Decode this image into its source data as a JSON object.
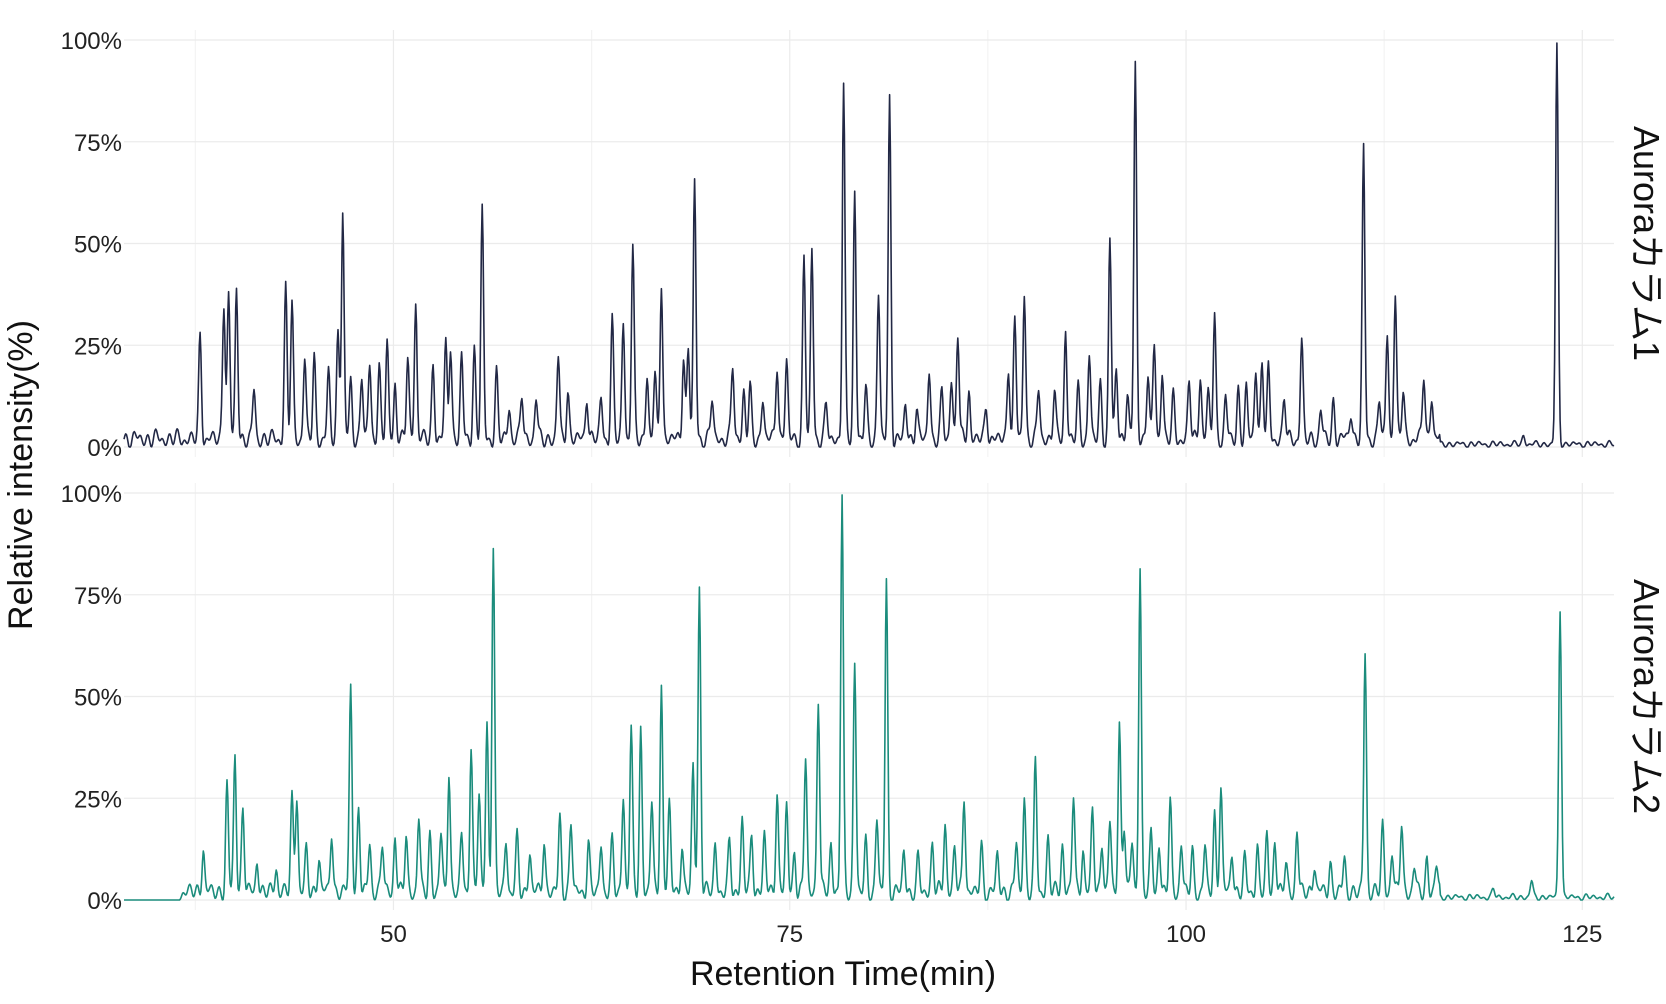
{
  "chart_data": {
    "type": "line",
    "xlabel": "Retention Time(min)",
    "ylabel": "Relative intensity(%)",
    "xlim": [
      33,
      127
    ],
    "ylim": [
      0,
      100
    ],
    "x_ticks": [
      50,
      75,
      100,
      125
    ],
    "x_tick_labels": [
      "50",
      "75",
      "100",
      "125"
    ],
    "y_ticks": [
      0,
      25,
      50,
      75,
      100
    ],
    "y_tick_labels": [
      "0%",
      "25%",
      "50%",
      "75%",
      "100%"
    ],
    "grid": true,
    "legend": "none",
    "baseline": 2,
    "series": [
      {
        "name": "Auroraカラム1",
        "color": "#222845",
        "peaks": [
          [
            37.8,
            25
          ],
          [
            39.3,
            34
          ],
          [
            39.6,
            35
          ],
          [
            40.1,
            37
          ],
          [
            41.2,
            12
          ],
          [
            43.2,
            37
          ],
          [
            43.6,
            33
          ],
          [
            44.4,
            20
          ],
          [
            45.0,
            20
          ],
          [
            45.9,
            16
          ],
          [
            46.5,
            26
          ],
          [
            46.8,
            56
          ],
          [
            47.3,
            14
          ],
          [
            48.0,
            16
          ],
          [
            48.5,
            18
          ],
          [
            49.1,
            18
          ],
          [
            49.6,
            23
          ],
          [
            50.1,
            14
          ],
          [
            50.9,
            20
          ],
          [
            51.4,
            34
          ],
          [
            52.5,
            18
          ],
          [
            53.3,
            23
          ],
          [
            53.6,
            23
          ],
          [
            54.3,
            20
          ],
          [
            55.1,
            22
          ],
          [
            55.6,
            56
          ],
          [
            56.5,
            16
          ],
          [
            57.3,
            8
          ],
          [
            58.1,
            11
          ],
          [
            59.0,
            10
          ],
          [
            60.4,
            20
          ],
          [
            61.0,
            12
          ],
          [
            62.2,
            11
          ],
          [
            63.1,
            10
          ],
          [
            63.8,
            29
          ],
          [
            64.5,
            29
          ],
          [
            65.1,
            47
          ],
          [
            66.0,
            16
          ],
          [
            66.5,
            15
          ],
          [
            66.9,
            39
          ],
          [
            68.3,
            21
          ],
          [
            68.6,
            22
          ],
          [
            69.0,
            63
          ],
          [
            70.1,
            10
          ],
          [
            71.4,
            18
          ],
          [
            72.1,
            12
          ],
          [
            72.5,
            12
          ],
          [
            73.3,
            10
          ],
          [
            74.2,
            19
          ],
          [
            74.8,
            19
          ],
          [
            75.9,
            44
          ],
          [
            76.4,
            47
          ],
          [
            77.3,
            8
          ],
          [
            78.4,
            87
          ],
          [
            79.1,
            61
          ],
          [
            79.8,
            12
          ],
          [
            80.6,
            36
          ],
          [
            81.3,
            83
          ],
          [
            82.3,
            8
          ],
          [
            83.0,
            8
          ],
          [
            83.8,
            17
          ],
          [
            84.6,
            11
          ],
          [
            85.2,
            15
          ],
          [
            85.6,
            26
          ],
          [
            86.3,
            12
          ],
          [
            87.4,
            8
          ],
          [
            88.8,
            18
          ],
          [
            89.2,
            29
          ],
          [
            89.8,
            36
          ],
          [
            90.7,
            12
          ],
          [
            91.7,
            12
          ],
          [
            92.4,
            27
          ],
          [
            93.2,
            12
          ],
          [
            93.9,
            21
          ],
          [
            94.6,
            13
          ],
          [
            95.2,
            49
          ],
          [
            95.6,
            17
          ],
          [
            96.3,
            12
          ],
          [
            96.8,
            92
          ],
          [
            97.6,
            17
          ],
          [
            98.0,
            23
          ],
          [
            98.5,
            17
          ],
          [
            99.2,
            10
          ],
          [
            100.2,
            14
          ],
          [
            100.9,
            16
          ],
          [
            101.4,
            11
          ],
          [
            101.8,
            31
          ],
          [
            102.5,
            10
          ],
          [
            103.3,
            12
          ],
          [
            103.8,
            12
          ],
          [
            104.4,
            18
          ],
          [
            104.8,
            19
          ],
          [
            105.2,
            17
          ],
          [
            106.2,
            10
          ],
          [
            107.3,
            24
          ],
          [
            108.5,
            7
          ],
          [
            109.3,
            9
          ],
          [
            110.4,
            7
          ],
          [
            111.2,
            71
          ],
          [
            112.2,
            10
          ],
          [
            112.7,
            26
          ],
          [
            113.2,
            36
          ],
          [
            113.7,
            12
          ],
          [
            115.0,
            16
          ],
          [
            115.5,
            11
          ],
          [
            121.3,
            2
          ],
          [
            123.4,
            98
          ]
        ]
      },
      {
        "name": "Auroraカラム2",
        "color": "#1b8c7c",
        "peaks": [
          [
            38.0,
            11
          ],
          [
            39.5,
            26
          ],
          [
            40.0,
            34
          ],
          [
            40.5,
            21
          ],
          [
            41.4,
            8
          ],
          [
            42.6,
            6
          ],
          [
            43.6,
            23
          ],
          [
            43.9,
            24
          ],
          [
            44.5,
            10
          ],
          [
            45.3,
            9
          ],
          [
            46.1,
            15
          ],
          [
            47.3,
            51
          ],
          [
            47.8,
            20
          ],
          [
            48.5,
            12
          ],
          [
            49.3,
            12
          ],
          [
            50.1,
            14
          ],
          [
            50.8,
            14
          ],
          [
            51.6,
            18
          ],
          [
            52.3,
            14
          ],
          [
            53.0,
            14
          ],
          [
            53.5,
            30
          ],
          [
            54.3,
            14
          ],
          [
            54.9,
            36
          ],
          [
            55.4,
            24
          ],
          [
            55.9,
            42
          ],
          [
            56.3,
            84
          ],
          [
            57.1,
            13
          ],
          [
            57.8,
            13
          ],
          [
            58.6,
            10
          ],
          [
            59.5,
            13
          ],
          [
            60.5,
            18
          ],
          [
            61.2,
            17
          ],
          [
            62.3,
            12
          ],
          [
            63.1,
            12
          ],
          [
            63.8,
            12
          ],
          [
            64.5,
            24
          ],
          [
            65.0,
            40
          ],
          [
            65.6,
            40
          ],
          [
            66.3,
            22
          ],
          [
            66.9,
            51
          ],
          [
            67.4,
            22
          ],
          [
            68.2,
            12
          ],
          [
            68.9,
            31
          ],
          [
            69.3,
            75
          ],
          [
            70.3,
            12
          ],
          [
            71.2,
            12
          ],
          [
            72.0,
            18
          ],
          [
            72.6,
            14
          ],
          [
            73.4,
            14
          ],
          [
            74.2,
            25
          ],
          [
            74.8,
            21
          ],
          [
            75.3,
            10
          ],
          [
            76.0,
            33
          ],
          [
            76.8,
            48
          ],
          [
            77.6,
            12
          ],
          [
            78.3,
            97
          ],
          [
            79.1,
            57
          ],
          [
            79.8,
            12
          ],
          [
            80.5,
            18
          ],
          [
            81.1,
            76
          ],
          [
            82.2,
            10
          ],
          [
            83.1,
            8
          ],
          [
            84.0,
            12
          ],
          [
            84.8,
            17
          ],
          [
            85.4,
            11
          ],
          [
            86.0,
            24
          ],
          [
            87.1,
            11
          ],
          [
            88.1,
            9
          ],
          [
            89.3,
            12
          ],
          [
            89.8,
            23
          ],
          [
            90.5,
            32
          ],
          [
            91.3,
            13
          ],
          [
            92.2,
            12
          ],
          [
            92.9,
            24
          ],
          [
            93.5,
            11
          ],
          [
            94.1,
            20
          ],
          [
            94.7,
            13
          ],
          [
            95.2,
            17
          ],
          [
            95.8,
            41
          ],
          [
            96.1,
            17
          ],
          [
            96.6,
            12
          ],
          [
            97.1,
            80
          ],
          [
            97.8,
            14
          ],
          [
            98.3,
            12
          ],
          [
            99.0,
            22
          ],
          [
            99.7,
            12
          ],
          [
            100.4,
            10
          ],
          [
            101.2,
            11
          ],
          [
            101.8,
            19
          ],
          [
            102.2,
            26
          ],
          [
            102.9,
            10
          ],
          [
            103.7,
            8
          ],
          [
            104.5,
            11
          ],
          [
            105.1,
            13
          ],
          [
            105.6,
            13
          ],
          [
            106.3,
            7
          ],
          [
            107.0,
            15
          ],
          [
            108.1,
            7
          ],
          [
            109.1,
            7
          ],
          [
            110.0,
            8
          ],
          [
            111.3,
            59
          ],
          [
            112.4,
            16
          ],
          [
            113.0,
            10
          ],
          [
            113.6,
            17
          ],
          [
            114.4,
            6
          ],
          [
            115.2,
            8
          ],
          [
            115.8,
            6
          ],
          [
            119.4,
            2
          ],
          [
            121.8,
            4
          ],
          [
            123.6,
            71
          ]
        ]
      }
    ]
  }
}
